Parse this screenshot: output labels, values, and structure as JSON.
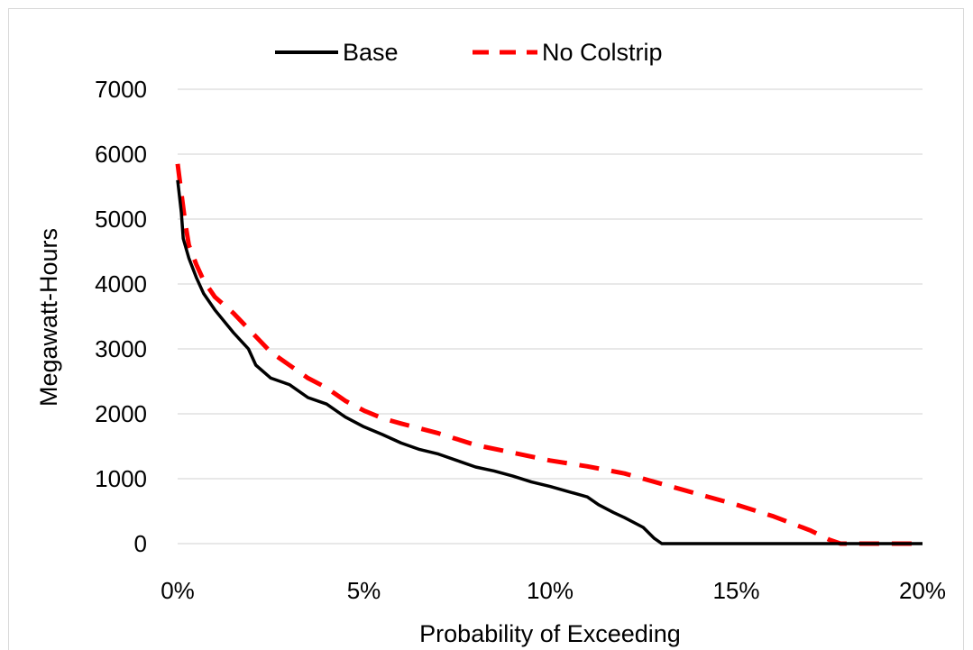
{
  "chart_data": {
    "type": "line",
    "title": "",
    "xlabel": "Probability of Exceeding",
    "ylabel": "Megawatt-Hours",
    "xlim": [
      0,
      20
    ],
    "ylim": [
      0,
      7000
    ],
    "x_ticks": [
      "0%",
      "5%",
      "10%",
      "15%",
      "20%"
    ],
    "x_tick_values": [
      0,
      5,
      10,
      15,
      20
    ],
    "y_ticks": [
      "0",
      "1000",
      "2000",
      "3000",
      "4000",
      "5000",
      "6000",
      "7000"
    ],
    "y_tick_values": [
      0,
      1000,
      2000,
      3000,
      4000,
      5000,
      6000,
      7000
    ],
    "grid": "horizontal",
    "legend_position": "top",
    "x_unit": "percent",
    "series": [
      {
        "name": "Base",
        "color": "#000000",
        "dash": "solid",
        "points": [
          [
            0,
            5600
          ],
          [
            0.1,
            5100
          ],
          [
            0.15,
            4700
          ],
          [
            0.3,
            4400
          ],
          [
            0.5,
            4100
          ],
          [
            0.7,
            3850
          ],
          [
            1.0,
            3600
          ],
          [
            1.5,
            3250
          ],
          [
            1.9,
            3000
          ],
          [
            2.1,
            2750
          ],
          [
            2.5,
            2550
          ],
          [
            3.0,
            2450
          ],
          [
            3.5,
            2250
          ],
          [
            4.0,
            2150
          ],
          [
            4.5,
            1950
          ],
          [
            5.0,
            1800
          ],
          [
            5.5,
            1680
          ],
          [
            6.0,
            1550
          ],
          [
            6.5,
            1450
          ],
          [
            7.0,
            1380
          ],
          [
            7.5,
            1280
          ],
          [
            8.0,
            1180
          ],
          [
            8.5,
            1120
          ],
          [
            9.0,
            1040
          ],
          [
            9.5,
            950
          ],
          [
            10.0,
            880
          ],
          [
            10.5,
            800
          ],
          [
            11.0,
            720
          ],
          [
            11.3,
            600
          ],
          [
            11.7,
            480
          ],
          [
            12.0,
            400
          ],
          [
            12.5,
            250
          ],
          [
            12.8,
            80
          ],
          [
            13.0,
            0
          ],
          [
            20.0,
            0
          ]
        ]
      },
      {
        "name": "No Colstrip",
        "color": "#ff0000",
        "dash": "dashed",
        "points": [
          [
            0,
            5850
          ],
          [
            0.1,
            5400
          ],
          [
            0.2,
            4950
          ],
          [
            0.3,
            4600
          ],
          [
            0.5,
            4300
          ],
          [
            0.7,
            4050
          ],
          [
            1.0,
            3800
          ],
          [
            1.5,
            3550
          ],
          [
            2.0,
            3250
          ],
          [
            2.5,
            2950
          ],
          [
            3.0,
            2750
          ],
          [
            3.5,
            2550
          ],
          [
            4.0,
            2400
          ],
          [
            4.5,
            2200
          ],
          [
            5.0,
            2050
          ],
          [
            5.5,
            1930
          ],
          [
            6.0,
            1850
          ],
          [
            7.0,
            1700
          ],
          [
            8.0,
            1520
          ],
          [
            9.0,
            1400
          ],
          [
            10.0,
            1280
          ],
          [
            11.0,
            1190
          ],
          [
            12.0,
            1080
          ],
          [
            13.0,
            920
          ],
          [
            14.0,
            760
          ],
          [
            15.0,
            600
          ],
          [
            16.0,
            420
          ],
          [
            17.0,
            200
          ],
          [
            17.5,
            60
          ],
          [
            17.8,
            0
          ],
          [
            20.0,
            0
          ]
        ]
      }
    ]
  }
}
